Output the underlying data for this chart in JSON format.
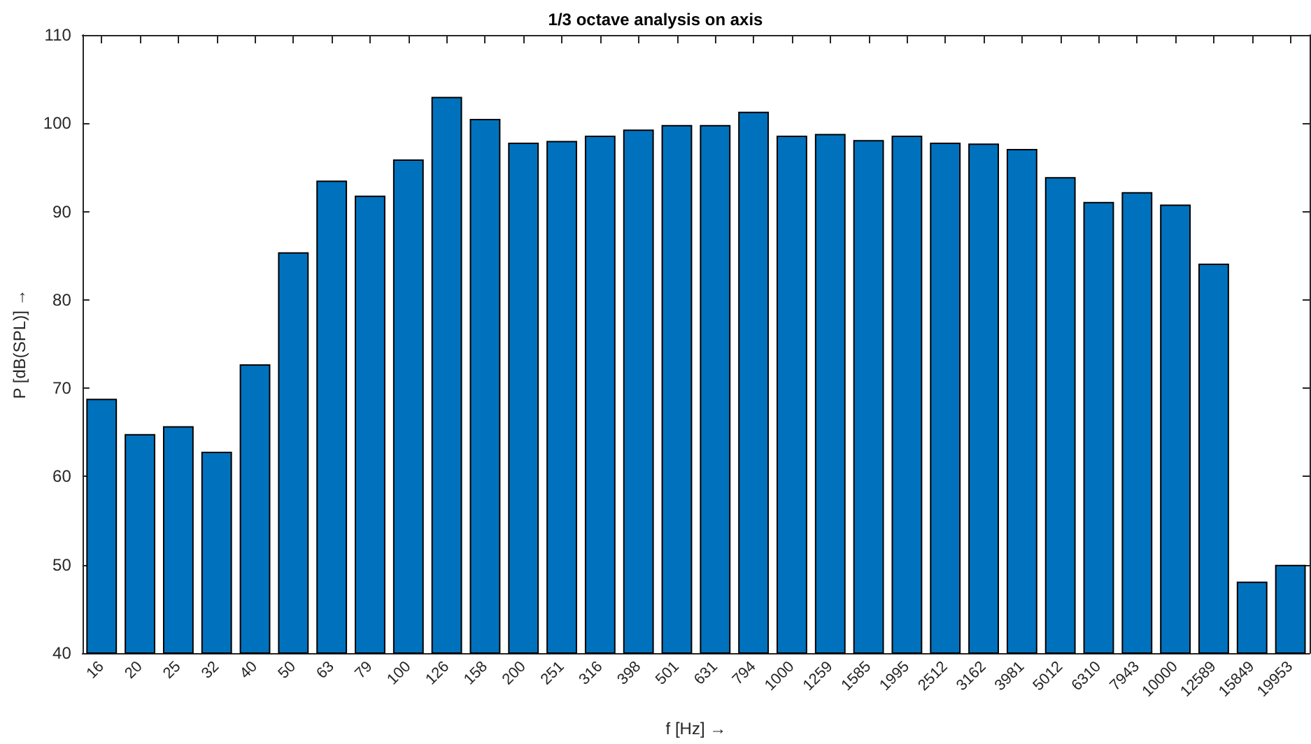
{
  "chart_data": {
    "type": "bar",
    "title": "1/3 octave analysis on axis",
    "xlabel": "f [Hz] →",
    "ylabel": "P [dB(SPL)] →",
    "categories": [
      "16",
      "20",
      "25",
      "32",
      "40",
      "50",
      "63",
      "79",
      "100",
      "126",
      "158",
      "200",
      "251",
      "316",
      "398",
      "501",
      "631",
      "794",
      "1000",
      "1259",
      "1585",
      "1995",
      "2512",
      "3162",
      "3981",
      "5012",
      "6310",
      "7943",
      "10000",
      "12589",
      "15849",
      "19953"
    ],
    "values": [
      68.8,
      64.8,
      65.7,
      62.8,
      72.7,
      85.4,
      93.5,
      91.8,
      95.9,
      103,
      100.5,
      97.8,
      98,
      98.6,
      99.3,
      99.8,
      99.8,
      101.3,
      98.6,
      98.8,
      98.1,
      98.6,
      97.8,
      97.7,
      97.1,
      93.9,
      91.1,
      92.2,
      90.8,
      84.1,
      48.1,
      50
    ],
    "color": "#0072bd",
    "ylim": [
      40,
      110
    ],
    "yticks": [
      40,
      50,
      60,
      70,
      80,
      90,
      100,
      110
    ],
    "grid": false
  }
}
